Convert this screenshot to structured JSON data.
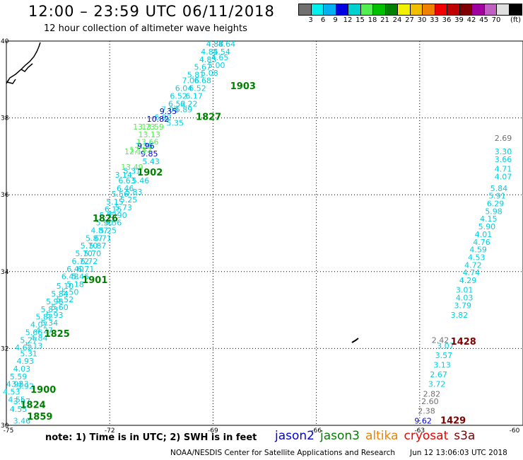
{
  "header": {
    "title": "12:00 – 23:59 UTC 06/11/2018",
    "subtitle": "12 hour collection of altimeter wave heights"
  },
  "legend": {
    "colors": [
      "#707070",
      "#00f0f0",
      "#00b0f0",
      "#0000e0",
      "#00d0d0",
      "#50f050",
      "#00c000",
      "#008000",
      "#f0f000",
      "#f0c000",
      "#f08000",
      "#f00000",
      "#c00000",
      "#800000",
      "#a000a0",
      "#c060c0",
      "#e0e0e0",
      "#000000"
    ],
    "labels": [
      "3",
      "6",
      "9",
      "12",
      "15",
      "18",
      "21",
      "24",
      "27",
      "30",
      "33",
      "36",
      "39",
      "42",
      "45",
      "70",
      "(ft)"
    ],
    "unit": "(ft)"
  },
  "map_data": {
    "type": "map",
    "lon_range": [
      -75,
      -60
    ],
    "lat_range": [
      30,
      40
    ],
    "lon_ticks": [
      "-75",
      "-72",
      "-69",
      "-66",
      "-63",
      "-60"
    ],
    "lat_ticks": [
      "40",
      "38",
      "36",
      "34",
      "32",
      "30"
    ],
    "pass_times": [
      {
        "label": "1903",
        "lon": -68.5,
        "lat": 38.75,
        "color": "#008000"
      },
      {
        "label": "1827",
        "lon": -69.5,
        "lat": 37.95,
        "color": "#008000"
      },
      {
        "label": "1902",
        "lon": -71.2,
        "lat": 36.5,
        "color": "#008000"
      },
      {
        "label": "1826",
        "lon": -72.5,
        "lat": 35.3,
        "color": "#008000"
      },
      {
        "label": "1901",
        "lon": -72.8,
        "lat": 33.7,
        "color": "#008000"
      },
      {
        "label": "1825",
        "lon": -73.9,
        "lat": 32.3,
        "color": "#008000"
      },
      {
        "label": "1900",
        "lon": -74.3,
        "lat": 30.85,
        "color": "#008000"
      },
      {
        "label": "1824",
        "lon": -74.6,
        "lat": 30.45,
        "color": "#008000"
      },
      {
        "label": "1859",
        "lon": -74.4,
        "lat": 30.15,
        "color": "#008000"
      },
      {
        "label": "1428",
        "lon": -62.1,
        "lat": 32.1,
        "color": "#800000"
      },
      {
        "label": "1429",
        "lon": -62.4,
        "lat": 30.05,
        "color": "#800000"
      }
    ],
    "tracks": [
      {
        "name": "west-track-a",
        "color": "#00d0e0",
        "points": [
          {
            "v": "4.64",
            "lon": -68.6,
            "lat": 39.85
          },
          {
            "v": "4.54",
            "lon": -68.75,
            "lat": 39.65
          },
          {
            "v": "4.65",
            "lon": -68.8,
            "lat": 39.5
          },
          {
            "v": "5.00",
            "lon": -68.9,
            "lat": 39.3
          },
          {
            "v": "5.08",
            "lon": -69.1,
            "lat": 39.1
          },
          {
            "v": "6.68",
            "lon": -69.3,
            "lat": 38.9
          },
          {
            "v": "6.52",
            "lon": -69.45,
            "lat": 38.7
          },
          {
            "v": "6.17",
            "lon": -69.55,
            "lat": 38.5
          },
          {
            "v": "6.22",
            "lon": -69.7,
            "lat": 38.3
          },
          {
            "v": "6.89",
            "lon": -69.85,
            "lat": 38.15
          },
          {
            "v": "5.35",
            "lon": -70.1,
            "lat": 37.8
          },
          {
            "v": "5.43",
            "lon": -70.8,
            "lat": 36.8
          },
          {
            "v": "5.46",
            "lon": -71.1,
            "lat": 36.3
          },
          {
            "v": "5.83",
            "lon": -71.3,
            "lat": 36.0
          },
          {
            "v": "5.25",
            "lon": -71.45,
            "lat": 35.8
          },
          {
            "v": "5.73",
            "lon": -71.6,
            "lat": 35.6
          },
          {
            "v": "5.90",
            "lon": -71.75,
            "lat": 35.4
          },
          {
            "v": "5.56",
            "lon": -71.9,
            "lat": 35.2
          },
          {
            "v": "5.25",
            "lon": -72.05,
            "lat": 35.0
          },
          {
            "v": "6.71",
            "lon": -72.2,
            "lat": 34.8
          },
          {
            "v": "5.87",
            "lon": -72.35,
            "lat": 34.6
          },
          {
            "v": "5.70",
            "lon": -72.5,
            "lat": 34.4
          },
          {
            "v": "6.72",
            "lon": -72.6,
            "lat": 34.2
          },
          {
            "v": "6.71",
            "lon": -72.7,
            "lat": 34.0
          },
          {
            "v": "5.46",
            "lon": -72.85,
            "lat": 33.8
          },
          {
            "v": "5.18",
            "lon": -73.0,
            "lat": 33.6
          },
          {
            "v": "5.50",
            "lon": -73.15,
            "lat": 33.4
          },
          {
            "v": "5.52",
            "lon": -73.3,
            "lat": 33.2
          },
          {
            "v": "5.60",
            "lon": -73.45,
            "lat": 33.0
          },
          {
            "v": "5.93",
            "lon": -73.6,
            "lat": 32.8
          },
          {
            "v": "5.34",
            "lon": -73.75,
            "lat": 32.6
          },
          {
            "v": "4.27",
            "lon": -73.9,
            "lat": 32.4
          },
          {
            "v": "4.84",
            "lon": -74.05,
            "lat": 32.2
          },
          {
            "v": "5.13",
            "lon": -74.2,
            "lat": 32.0
          },
          {
            "v": "5.31",
            "lon": -74.35,
            "lat": 31.8
          },
          {
            "v": "4.93",
            "lon": -74.45,
            "lat": 31.6
          },
          {
            "v": "4.03",
            "lon": -74.55,
            "lat": 31.4
          },
          {
            "v": "5.59",
            "lon": -74.65,
            "lat": 31.2
          },
          {
            "v": "4.92",
            "lon": -74.75,
            "lat": 31.0
          },
          {
            "v": "4.53",
            "lon": -74.85,
            "lat": 30.8
          }
        ]
      },
      {
        "name": "west-track-b",
        "color": "#00d0e0",
        "points": [
          {
            "v": "4.88",
            "lon": -68.95,
            "lat": 39.85
          },
          {
            "v": "4.85",
            "lon": -69.1,
            "lat": 39.65
          },
          {
            "v": "4.85",
            "lon": -69.15,
            "lat": 39.45
          },
          {
            "v": "5.67",
            "lon": -69.3,
            "lat": 39.25
          },
          {
            "v": "5.81",
            "lon": -69.5,
            "lat": 39.05
          },
          {
            "v": "7.06",
            "lon": -69.65,
            "lat": 38.9
          },
          {
            "v": "6.04",
            "lon": -69.85,
            "lat": 38.7
          },
          {
            "v": "6.52",
            "lon": -70.0,
            "lat": 38.5
          },
          {
            "v": "6.52",
            "lon": -70.05,
            "lat": 38.3
          },
          {
            "v": "7.08",
            "lon": -70.25,
            "lat": 38.15
          },
          {
            "v": "6.92",
            "lon": -70.45,
            "lat": 37.95
          },
          {
            "v": "7.35",
            "lon": -71.0,
            "lat": 37.2
          },
          {
            "v": "5.31",
            "lon": -71.35,
            "lat": 36.55
          },
          {
            "v": "3.14",
            "lon": -71.6,
            "lat": 36.45
          },
          {
            "v": "6.63",
            "lon": -71.5,
            "lat": 36.3
          },
          {
            "v": "6.46",
            "lon": -71.55,
            "lat": 36.1
          },
          {
            "v": "5.56",
            "lon": -71.7,
            "lat": 35.95
          },
          {
            "v": "5.15",
            "lon": -71.85,
            "lat": 35.75
          },
          {
            "v": "6.15",
            "lon": -71.9,
            "lat": 35.55
          },
          {
            "v": "5.53",
            "lon": -72.05,
            "lat": 35.4
          },
          {
            "v": "5.90",
            "lon": -72.15,
            "lat": 35.2
          },
          {
            "v": "4.87",
            "lon": -72.3,
            "lat": 35.0
          },
          {
            "v": "5.87",
            "lon": -72.45,
            "lat": 34.8
          },
          {
            "v": "5.70",
            "lon": -72.6,
            "lat": 34.6
          },
          {
            "v": "5.70",
            "lon": -72.75,
            "lat": 34.4
          },
          {
            "v": "6.72",
            "lon": -72.85,
            "lat": 34.2
          },
          {
            "v": "6.40",
            "lon": -73.0,
            "lat": 34.0
          },
          {
            "v": "6.48",
            "lon": -73.15,
            "lat": 33.8
          },
          {
            "v": "5.10",
            "lon": -73.3,
            "lat": 33.55
          },
          {
            "v": "5.84",
            "lon": -73.45,
            "lat": 33.35
          },
          {
            "v": "5.98",
            "lon": -73.6,
            "lat": 33.15
          },
          {
            "v": "5.83",
            "lon": -73.75,
            "lat": 32.95
          },
          {
            "v": "5.82",
            "lon": -73.9,
            "lat": 32.75
          },
          {
            "v": "4.07",
            "lon": -74.05,
            "lat": 32.55
          },
          {
            "v": "5.66",
            "lon": -74.2,
            "lat": 32.35
          },
          {
            "v": "5.27",
            "lon": -74.35,
            "lat": 32.15
          },
          {
            "v": "4.62",
            "lon": -74.5,
            "lat": 31.95
          },
          {
            "v": "3.53",
            "lon": -74.6,
            "lat": 31.0
          },
          {
            "v": "3.92",
            "lon": -74.45,
            "lat": 30.95
          },
          {
            "v": "4.55",
            "lon": -74.7,
            "lat": 30.6
          },
          {
            "v": "3.97",
            "lon": -74.55,
            "lat": 30.55
          },
          {
            "v": "4.55",
            "lon": -74.65,
            "lat": 30.35
          },
          {
            "v": "3.46",
            "lon": -74.55,
            "lat": 30.05
          }
        ]
      },
      {
        "name": "west-track-c",
        "color": "#0000e0",
        "points": [
          {
            "v": "9.35",
            "lon": -70.3,
            "lat": 38.1
          },
          {
            "v": "10.82",
            "lon": -70.6,
            "lat": 37.9
          },
          {
            "v": "9.96",
            "lon": -70.95,
            "lat": 37.2
          },
          {
            "v": "9.85",
            "lon": -70.85,
            "lat": 37.0
          }
        ]
      },
      {
        "name": "west-track-d",
        "color": "#50f050",
        "points": [
          {
            "v": "13.59",
            "lon": -70.75,
            "lat": 37.7
          },
          {
            "v": "13.73",
            "lon": -71.0,
            "lat": 37.7
          },
          {
            "v": "13.13",
            "lon": -70.85,
            "lat": 37.5
          },
          {
            "v": "13.66",
            "lon": -70.9,
            "lat": 37.3
          },
          {
            "v": "12.52",
            "lon": -71.1,
            "lat": 37.1
          },
          {
            "v": "12.11",
            "lon": -71.25,
            "lat": 37.05
          },
          {
            "v": "13.49",
            "lon": -71.35,
            "lat": 36.65
          }
        ]
      },
      {
        "name": "east-track",
        "color": "#00d0e0",
        "points": [
          {
            "v": "4.71",
            "lon": -60.4,
            "lat": 36.6
          },
          {
            "v": "4.07",
            "lon": -60.55,
            "lat": 36.4
          },
          {
            "v": "5.84",
            "lon": -60.7,
            "lat": 36.1
          },
          {
            "v": "5.91",
            "lon": -60.75,
            "lat": 35.9
          },
          {
            "v": "6.29",
            "lon": -60.8,
            "lat": 35.7
          },
          {
            "v": "5.98",
            "lon": -60.85,
            "lat": 35.5
          },
          {
            "v": "4.15",
            "lon": -61.0,
            "lat": 35.3
          },
          {
            "v": "5.90",
            "lon": -61.05,
            "lat": 35.1
          },
          {
            "v": "4.01",
            "lon": -61.15,
            "lat": 34.9
          },
          {
            "v": "4.76",
            "lon": -61.2,
            "lat": 34.7
          },
          {
            "v": "4.59",
            "lon": -61.3,
            "lat": 34.5
          },
          {
            "v": "4.53",
            "lon": -61.35,
            "lat": 34.3
          },
          {
            "v": "4.72",
            "lon": -61.45,
            "lat": 34.1
          },
          {
            "v": "4.74",
            "lon": -61.5,
            "lat": 33.9
          },
          {
            "v": "4.29",
            "lon": -61.6,
            "lat": 33.7
          },
          {
            "v": "3.01",
            "lon": -61.7,
            "lat": 33.45
          },
          {
            "v": "4.03",
            "lon": -61.7,
            "lat": 33.25
          },
          {
            "v": "3.79",
            "lon": -61.75,
            "lat": 33.05
          },
          {
            "v": "3.82",
            "lon": -61.85,
            "lat": 32.8
          },
          {
            "v": "3.07",
            "lon": -62.25,
            "lat": 32.0
          },
          {
            "v": "3.57",
            "lon": -62.3,
            "lat": 31.75
          },
          {
            "v": "3.13",
            "lon": -62.35,
            "lat": 31.5
          },
          {
            "v": "2.67",
            "lon": -62.45,
            "lat": 31.25
          },
          {
            "v": "3.72",
            "lon": -62.5,
            "lat": 31.0
          }
        ]
      },
      {
        "name": "east-track-edge",
        "color": "#00d0e0",
        "points": [
          {
            "v": "3.30",
            "lon": -60.25,
            "lat": 37.05
          },
          {
            "v": "3.66",
            "lon": -60.2,
            "lat": 36.85
          }
        ]
      },
      {
        "name": "east-track-gray",
        "color": "#707070",
        "points": [
          {
            "v": "2.42",
            "lon": -62.4,
            "lat": 32.15
          },
          {
            "v": "2.82",
            "lon": -62.65,
            "lat": 30.75
          },
          {
            "v": "2.60",
            "lon": -62.7,
            "lat": 30.55
          },
          {
            "v": "2.38",
            "lon": -62.8,
            "lat": 30.3
          },
          {
            "v": "2.69",
            "lon": -60.1,
            "lat": 37.4
          }
        ]
      },
      {
        "name": "east-track-blue",
        "color": "#0000e0",
        "points": [
          {
            "v": "9.62",
            "lon": -62.9,
            "lat": 30.05
          }
        ]
      }
    ]
  },
  "footer": {
    "note": "note: 1) Time is in UTC; 2) SWH is in feet",
    "satellites": [
      {
        "name": "jason2",
        "color": "#0000e0"
      },
      {
        "name": "jason3",
        "color": "#008000"
      },
      {
        "name": "altika",
        "color": "#f08000"
      },
      {
        "name": "cryosat",
        "color": "#f00000"
      },
      {
        "name": "s3a",
        "color": "#800000"
      }
    ],
    "credit": "NOAA/NESDIS Center for Satellite Applications and Research",
    "timestamp": "Jun 12 13:06:03 UTC 2018"
  }
}
